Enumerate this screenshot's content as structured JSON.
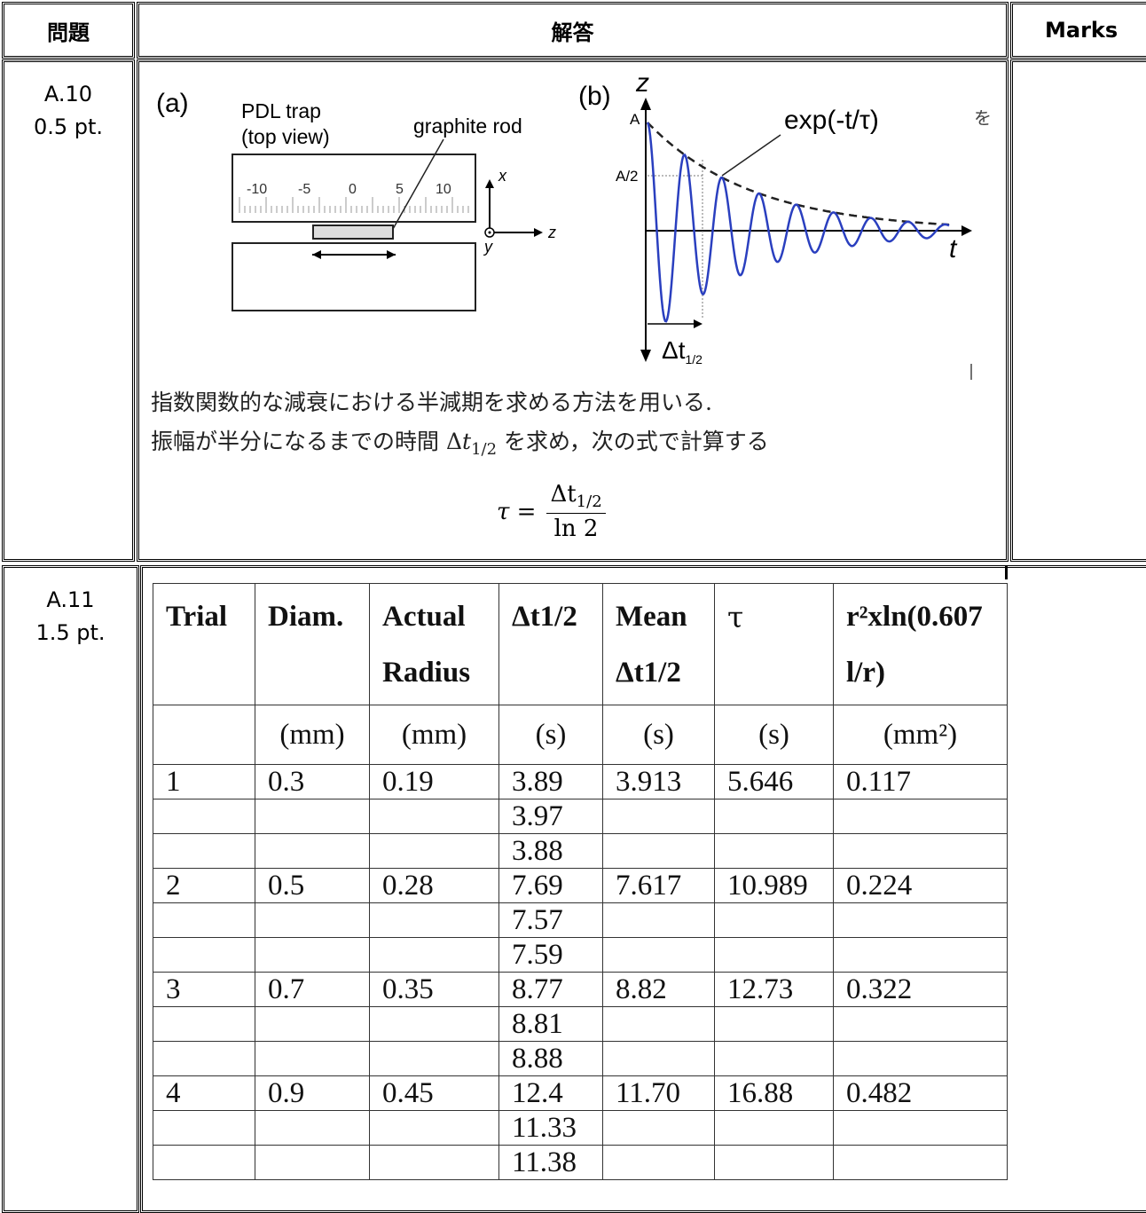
{
  "header": {
    "question": "問題",
    "answer": "解答",
    "marks": "Marks"
  },
  "a10": {
    "id": "A.10",
    "points": "0.5 pt.",
    "figure": {
      "panel_a": "(a)",
      "trap_label_1": "PDL trap",
      "trap_label_2": "(top view)",
      "rod_label": "graphite rod",
      "scale_ticks": [
        "-10",
        "-5",
        "0",
        "5",
        "10"
      ],
      "axis_x": "x",
      "axis_y": "y",
      "axis_z": "z",
      "panel_b": "(b)",
      "plot_z": "z",
      "plot_t": "t",
      "amp_A": "A",
      "amp_A2": "A/2",
      "envelope": "exp(-t/τ)",
      "dt_label": "Δt",
      "dt_sub": "1/2",
      "stray_char": "を"
    },
    "text_line1": "指数関数的な減衰における半減期を求める方法を用いる.",
    "text_line2_pre": "振幅が半分になるまでの時間 Δ",
    "text_line2_var": "t",
    "text_line2_sub": "1/2",
    "text_line2_post": " を求め，次の式で計算する",
    "formula": {
      "lhs": "τ =",
      "num": "Δt",
      "num_sub": "1/2",
      "den": "ln 2"
    }
  },
  "a11": {
    "id": "A.11",
    "points": "1.5 pt.",
    "table": {
      "headers": [
        "Trial",
        "Diam.",
        "Actual Radius",
        "Δt1/2",
        "Mean Δt1/2",
        "τ",
        "r²xln(0.607 l/r)"
      ],
      "units": [
        "",
        "(mm)",
        "(mm)",
        "(s)",
        "(s)",
        "(s)",
        "(mm²)"
      ],
      "rows": [
        [
          "1",
          "0.3",
          "0.19",
          "3.89",
          "3.913",
          "5.646",
          "0.117"
        ],
        [
          "",
          "",
          "",
          "3.97",
          "",
          "",
          ""
        ],
        [
          "",
          "",
          "",
          "3.88",
          "",
          "",
          ""
        ],
        [
          "2",
          "0.5",
          "0.28",
          "7.69",
          "7.617",
          "10.989",
          "0.224"
        ],
        [
          "",
          "",
          "",
          "7.57",
          "",
          "",
          ""
        ],
        [
          "",
          "",
          "",
          "7.59",
          "",
          "",
          ""
        ],
        [
          "3",
          "0.7",
          "0.35",
          "8.77",
          "8.82",
          "12.73",
          "0.322"
        ],
        [
          "",
          "",
          "",
          "8.81",
          "",
          "",
          ""
        ],
        [
          "",
          "",
          "",
          "8.88",
          "",
          "",
          ""
        ],
        [
          "4",
          "0.9",
          "0.45",
          "12.4",
          "11.70",
          "16.88",
          "0.482"
        ],
        [
          "",
          "",
          "",
          "11.33",
          "",
          "",
          ""
        ],
        [
          "",
          "",
          "",
          "11.38",
          "",
          "",
          ""
        ]
      ]
    }
  }
}
